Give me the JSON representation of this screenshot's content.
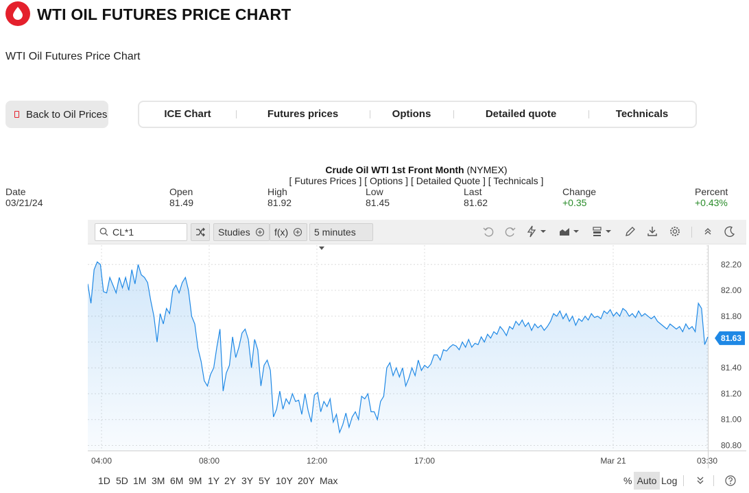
{
  "header": {
    "title": "WTI OIL FUTURES PRICE CHART",
    "subtitle": "WTI Oil Futures Price Chart"
  },
  "back_button": {
    "label": "Back to Oil Prices"
  },
  "nav": {
    "tabs": [
      "ICE Chart",
      "Futures prices",
      "Options",
      "Detailed quote",
      "Technicals"
    ]
  },
  "quote": {
    "name": "Crude Oil WTI 1st Front Month",
    "exchange": "(NYMEX)",
    "links": "[ Futures Prices ] [ Options ] [ Detailed Quote ] [ Technicals ]",
    "columns": [
      {
        "label": "Date",
        "value": "03/21/24",
        "positive": false
      },
      {
        "label": "Open",
        "value": "81.49",
        "positive": false
      },
      {
        "label": "High",
        "value": "81.92",
        "positive": false
      },
      {
        "label": "Low",
        "value": "81.45",
        "positive": false
      },
      {
        "label": "Last",
        "value": "81.62",
        "positive": false
      },
      {
        "label": "Change",
        "value": "+0.35",
        "positive": true
      },
      {
        "label": "Percent",
        "value": "+0.43%",
        "positive": true
      }
    ]
  },
  "toolbar": {
    "symbol": "CL*1",
    "studies_label": "Studies",
    "fx_label": "f(x)",
    "interval_label": "5 minutes"
  },
  "footer": {
    "ranges": [
      "1D",
      "5D",
      "1M",
      "3M",
      "6M",
      "9M",
      "1Y",
      "2Y",
      "3Y",
      "5Y",
      "10Y",
      "20Y",
      "Max"
    ],
    "percent_label": "%",
    "auto_label": "Auto",
    "log_label": "Log",
    "active_scale": "Auto"
  },
  "colors": {
    "brand": "#e4202c",
    "line": "#1e88e5",
    "positive": "#2a8c2a"
  },
  "chart_data": {
    "type": "area",
    "x_ticks": [
      "04:00",
      "08:00",
      "12:00",
      "17:00",
      "Mar 21",
      "03:30"
    ],
    "y_ticks": [
      "82.20",
      "82.00",
      "81.80",
      "81.60",
      "81.40",
      "81.20",
      "81.00",
      "80.80"
    ],
    "ylim": [
      80.76,
      82.35
    ],
    "last_value": "81.63",
    "series": [
      {
        "values": [
          82.05,
          81.9,
          82.16,
          82.22,
          82.2,
          81.99,
          81.98,
          82.1,
          82.04,
          81.98,
          82.1,
          82.02,
          82.1,
          82.0,
          82.16,
          82.05,
          82.2,
          82.12,
          82.1,
          82.06,
          81.92,
          81.8,
          81.6,
          81.82,
          81.74,
          81.86,
          81.82,
          82.0,
          82.04,
          81.98,
          82.06,
          82.1,
          82.0,
          81.8,
          81.74,
          81.55,
          81.45,
          81.3,
          81.26,
          81.35,
          81.4,
          81.56,
          81.7,
          81.22,
          81.36,
          81.42,
          81.64,
          81.48,
          81.56,
          81.67,
          81.7,
          81.62,
          81.4,
          81.62,
          81.54,
          81.26,
          81.42,
          81.46,
          81.38,
          81.02,
          81.08,
          81.22,
          81.08,
          81.16,
          81.12,
          81.2,
          81.14,
          81.15,
          81.04,
          81.2,
          81.07,
          80.98,
          81.19,
          81.21,
          81.06,
          81.14,
          81.1,
          81.16,
          80.98,
          81.04,
          80.9,
          80.96,
          81.05,
          80.94,
          81.02,
          81.06,
          81.0,
          81.18,
          81.16,
          81.2,
          81.06,
          81.06,
          81.0,
          81.14,
          81.18,
          81.4,
          81.44,
          81.34,
          81.4,
          81.33,
          81.4,
          81.26,
          81.32,
          81.4,
          81.34,
          81.46,
          81.38,
          81.42,
          81.4,
          81.43,
          81.5,
          81.5,
          81.46,
          81.54,
          81.53,
          81.56,
          81.58,
          81.57,
          81.54,
          81.6,
          81.56,
          81.62,
          81.56,
          81.59,
          81.58,
          81.64,
          81.6,
          81.66,
          81.63,
          81.68,
          81.66,
          81.72,
          81.69,
          81.65,
          81.72,
          81.7,
          81.76,
          81.73,
          81.77,
          81.72,
          81.75,
          81.69,
          81.74,
          81.71,
          81.73,
          81.69,
          81.72,
          81.76,
          81.82,
          81.8,
          81.84,
          81.78,
          81.82,
          81.76,
          81.8,
          81.73,
          81.78,
          81.76,
          81.8,
          81.77,
          81.82,
          81.79,
          81.8,
          81.78,
          81.84,
          81.82,
          81.85,
          81.8,
          81.83,
          81.8,
          81.86,
          81.84,
          81.8,
          81.82,
          81.79,
          81.84,
          81.8,
          81.82,
          81.8,
          81.78,
          81.8,
          81.76,
          81.74,
          81.72,
          81.7,
          81.74,
          81.72,
          81.7,
          81.72,
          81.68,
          81.74,
          81.7,
          81.72,
          81.68,
          81.9,
          81.86,
          81.58,
          81.64
        ]
      }
    ]
  }
}
